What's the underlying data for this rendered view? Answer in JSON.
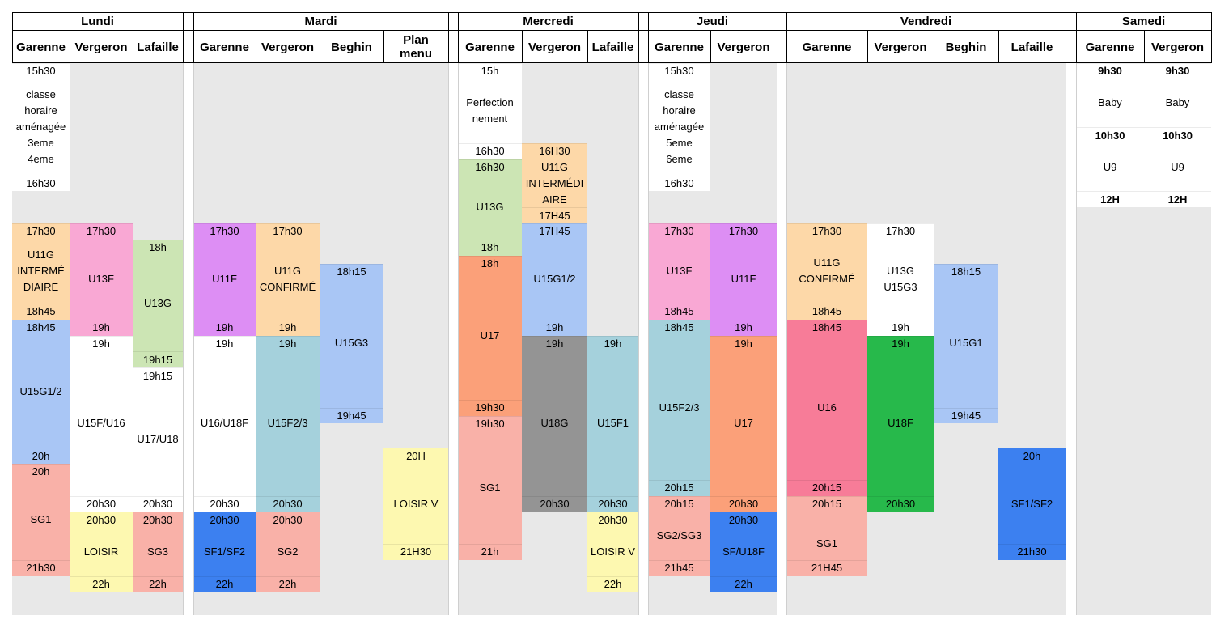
{
  "schedule": {
    "days": [
      {
        "name": "Lundi",
        "columns": [
          "Garenne",
          "Vergeron",
          "Lafaille"
        ]
      },
      {
        "name": "Mardi",
        "columns": [
          "Garenne",
          "Vergeron",
          "Beghin",
          "Plan\nmenu"
        ]
      },
      {
        "name": "Mercredi",
        "columns": [
          "Garenne",
          "Vergeron",
          "Lafaille"
        ]
      },
      {
        "name": "Jeudi",
        "columns": [
          "Garenne",
          "Vergeron"
        ]
      },
      {
        "name": "Vendredi",
        "columns": [
          "Garenne",
          "Vergeron",
          "Beghin",
          "Lafaille"
        ]
      },
      {
        "name": "Samedi",
        "columns": [
          "Garenne",
          "Vergeron"
        ]
      }
    ],
    "colors": {
      "white": "#ffffff",
      "orange": "#fdd8a8",
      "pink": "#f9a8d4",
      "green": "#cce5b4",
      "blue": "#a9c6f5",
      "salmon": "#f9b1a8",
      "yellow": "#fdf8b0",
      "purple": "#dd8ef4",
      "teal": "#a5d1dc",
      "orange2": "#fba079",
      "gray": "#949494",
      "darkblue": "#3c80f0",
      "green2": "#27b94b",
      "hotpink": "#f77c98",
      "grey_bg": "#e8e8e8"
    },
    "cells": [
      {
        "col": "L1",
        "t": 0,
        "r": 1,
        "text": "15h30",
        "c": "white"
      },
      {
        "col": "L1",
        "t": 1,
        "r": 6,
        "text": "classe\nhoraire\naménagée\n3eme\n4eme",
        "c": "white"
      },
      {
        "col": "L1",
        "t": 7,
        "r": 1,
        "text": "16h30",
        "c": "white"
      },
      {
        "col": "L1",
        "t": 10,
        "r": 1,
        "text": "17h30",
        "c": "orange"
      },
      {
        "col": "L1",
        "t": 11,
        "r": 4,
        "text": "U11G\nINTERMÉ\nDIAIRE",
        "c": "orange"
      },
      {
        "col": "L1",
        "t": 15,
        "r": 1,
        "text": "18h45",
        "c": "orange"
      },
      {
        "col": "L1",
        "t": 16,
        "r": 1,
        "text": "18h45",
        "c": "blue"
      },
      {
        "col": "L1",
        "t": 17,
        "r": 7,
        "text": "U15G1/2",
        "c": "blue"
      },
      {
        "col": "L1",
        "t": 24,
        "r": 1,
        "text": "20h",
        "c": "blue"
      },
      {
        "col": "L1",
        "t": 25,
        "r": 1,
        "text": "20h",
        "c": "salmon"
      },
      {
        "col": "L1",
        "t": 26,
        "r": 5,
        "text": "SG1",
        "c": "salmon"
      },
      {
        "col": "L1",
        "t": 31,
        "r": 1,
        "text": "21h30",
        "c": "salmon"
      },
      {
        "col": "L2",
        "t": 10,
        "r": 1,
        "text": "17h30",
        "c": "pink"
      },
      {
        "col": "L2",
        "t": 11,
        "r": 5,
        "text": "U13F",
        "c": "pink"
      },
      {
        "col": "L2",
        "t": 16,
        "r": 1,
        "text": "19h",
        "c": "pink"
      },
      {
        "col": "L2",
        "t": 17,
        "r": 1,
        "text": "19h",
        "c": "white"
      },
      {
        "col": "L2",
        "t": 18,
        "r": 9,
        "text": "U15F/U16",
        "c": "white"
      },
      {
        "col": "L2",
        "t": 27,
        "r": 1,
        "text": "20h30",
        "c": "white"
      },
      {
        "col": "L2",
        "t": 28,
        "r": 1,
        "text": "20h30",
        "c": "yellow"
      },
      {
        "col": "L2",
        "t": 29,
        "r": 3,
        "text": "LOISIR",
        "c": "yellow"
      },
      {
        "col": "L2",
        "t": 32,
        "r": 1,
        "text": "22h",
        "c": "yellow"
      },
      {
        "col": "L3",
        "t": 11,
        "r": 1,
        "text": "18h",
        "c": "green"
      },
      {
        "col": "L3",
        "t": 12,
        "r": 6,
        "text": "U13G",
        "c": "green"
      },
      {
        "col": "L3",
        "t": 18,
        "r": 1,
        "text": "19h15",
        "c": "green"
      },
      {
        "col": "L3",
        "t": 19,
        "r": 1,
        "text": "19h15",
        "c": "white"
      },
      {
        "col": "L3",
        "t": 20,
        "r": 7,
        "text": "U17/U18",
        "c": "white"
      },
      {
        "col": "L3",
        "t": 27,
        "r": 1,
        "text": "20h30",
        "c": "white"
      },
      {
        "col": "L3",
        "t": 28,
        "r": 1,
        "text": "20h30",
        "c": "salmon"
      },
      {
        "col": "L3",
        "t": 29,
        "r": 3,
        "text": "SG3",
        "c": "salmon"
      },
      {
        "col": "L3",
        "t": 32,
        "r": 1,
        "text": "22h",
        "c": "salmon"
      },
      {
        "col": "M1",
        "t": 10,
        "r": 1,
        "text": "17h30",
        "c": "purple"
      },
      {
        "col": "M1",
        "t": 11,
        "r": 5,
        "text": "U11F",
        "c": "purple"
      },
      {
        "col": "M1",
        "t": 16,
        "r": 1,
        "text": "19h",
        "c": "purple"
      },
      {
        "col": "M1",
        "t": 17,
        "r": 1,
        "text": "19h",
        "c": "white"
      },
      {
        "col": "M1",
        "t": 18,
        "r": 9,
        "text": "U16/U18F",
        "c": "white"
      },
      {
        "col": "M1",
        "t": 27,
        "r": 1,
        "text": "20h30",
        "c": "white"
      },
      {
        "col": "M1",
        "t": 28,
        "r": 1,
        "text": "20h30",
        "c": "darkblue"
      },
      {
        "col": "M1",
        "t": 29,
        "r": 3,
        "text": "SF1/SF2",
        "c": "darkblue"
      },
      {
        "col": "M1",
        "t": 32,
        "r": 1,
        "text": "22h",
        "c": "darkblue"
      },
      {
        "col": "M2",
        "t": 10,
        "r": 1,
        "text": "17h30",
        "c": "orange"
      },
      {
        "col": "M2",
        "t": 11,
        "r": 5,
        "text": "U11G\nCONFIRMÉ",
        "c": "orange"
      },
      {
        "col": "M2",
        "t": 16,
        "r": 1,
        "text": "19h",
        "c": "orange"
      },
      {
        "col": "M2",
        "t": 17,
        "r": 1,
        "text": "19h",
        "c": "teal"
      },
      {
        "col": "M2",
        "t": 18,
        "r": 9,
        "text": "U15F2/3",
        "c": "teal"
      },
      {
        "col": "M2",
        "t": 27,
        "r": 1,
        "text": "20h30",
        "c": "teal"
      },
      {
        "col": "M2",
        "t": 28,
        "r": 1,
        "text": "20h30",
        "c": "salmon"
      },
      {
        "col": "M2",
        "t": 29,
        "r": 3,
        "text": "SG2",
        "c": "salmon"
      },
      {
        "col": "M2",
        "t": 32,
        "r": 1,
        "text": "22h",
        "c": "salmon"
      },
      {
        "col": "M3",
        "t": 12.5,
        "r": 1,
        "text": "18h15",
        "c": "blue"
      },
      {
        "col": "M3",
        "t": 13.5,
        "r": 8,
        "text": "U15G3",
        "c": "blue"
      },
      {
        "col": "M3",
        "t": 21.5,
        "r": 1,
        "text": "19h45",
        "c": "blue"
      },
      {
        "col": "M4",
        "t": 24,
        "r": 1,
        "text": "20H",
        "c": "yellow"
      },
      {
        "col": "M4",
        "t": 25,
        "r": 5,
        "text": "LOISIR V",
        "c": "yellow"
      },
      {
        "col": "M4",
        "t": 30,
        "r": 1,
        "text": "21H30",
        "c": "yellow"
      },
      {
        "col": "W1",
        "t": 0,
        "r": 1,
        "text": "15h",
        "c": "white"
      },
      {
        "col": "W1",
        "t": 1,
        "r": 4,
        "text": "Perfection\nnement",
        "c": "white"
      },
      {
        "col": "W1",
        "t": 5,
        "r": 1,
        "text": "16h30",
        "c": "white"
      },
      {
        "col": "W1",
        "t": 6,
        "r": 1,
        "text": "16h30",
        "c": "green"
      },
      {
        "col": "W1",
        "t": 7,
        "r": 4,
        "text": "U13G",
        "c": "green"
      },
      {
        "col": "W1",
        "t": 11,
        "r": 1,
        "text": "18h",
        "c": "green"
      },
      {
        "col": "W1",
        "t": 12,
        "r": 1,
        "text": "18h",
        "c": "orange2"
      },
      {
        "col": "W1",
        "t": 13,
        "r": 8,
        "text": "U17",
        "c": "orange2"
      },
      {
        "col": "W1",
        "t": 21,
        "r": 1,
        "text": "19h30",
        "c": "orange2"
      },
      {
        "col": "W1",
        "t": 22,
        "r": 1,
        "text": "19h30",
        "c": "salmon"
      },
      {
        "col": "W1",
        "t": 23,
        "r": 7,
        "text": "SG1",
        "c": "salmon"
      },
      {
        "col": "W1",
        "t": 30,
        "r": 1,
        "text": "21h",
        "c": "salmon"
      },
      {
        "col": "W2",
        "t": 5,
        "r": 1,
        "text": "16H30",
        "c": "orange"
      },
      {
        "col": "W2",
        "t": 6,
        "r": 3,
        "text": "U11G\nINTERMÉDI\nAIRE",
        "c": "orange"
      },
      {
        "col": "W2",
        "t": 9,
        "r": 1,
        "text": "17H45",
        "c": "orange"
      },
      {
        "col": "W2",
        "t": 10,
        "r": 1,
        "text": "17H45",
        "c": "blue"
      },
      {
        "col": "W2",
        "t": 11,
        "r": 5,
        "text": "U15G1/2",
        "c": "blue"
      },
      {
        "col": "W2",
        "t": 16,
        "r": 1,
        "text": "19h",
        "c": "blue"
      },
      {
        "col": "W2",
        "t": 17,
        "r": 1,
        "text": "19h",
        "c": "gray"
      },
      {
        "col": "W2",
        "t": 18,
        "r": 9,
        "text": "U18G",
        "c": "gray"
      },
      {
        "col": "W2",
        "t": 27,
        "r": 1,
        "text": "20h30",
        "c": "gray"
      },
      {
        "col": "W3",
        "t": 17,
        "r": 1,
        "text": "19h",
        "c": "teal"
      },
      {
        "col": "W3",
        "t": 18,
        "r": 9,
        "text": "U15F1",
        "c": "teal"
      },
      {
        "col": "W3",
        "t": 27,
        "r": 1,
        "text": "20h30",
        "c": "teal"
      },
      {
        "col": "W3",
        "t": 28,
        "r": 1,
        "text": "20h30",
        "c": "yellow"
      },
      {
        "col": "W3",
        "t": 29,
        "r": 3,
        "text": "LOISIR V",
        "c": "yellow"
      },
      {
        "col": "W3",
        "t": 32,
        "r": 1,
        "text": "22h",
        "c": "yellow"
      },
      {
        "col": "J1",
        "t": 0,
        "r": 1,
        "text": "15h30",
        "c": "white"
      },
      {
        "col": "J1",
        "t": 1,
        "r": 6,
        "text": "classe\nhoraire\naménagée\n5eme\n6eme",
        "c": "white"
      },
      {
        "col": "J1",
        "t": 7,
        "r": 1,
        "text": "16h30",
        "c": "white"
      },
      {
        "col": "J1",
        "t": 10,
        "r": 1,
        "text": "17h30",
        "c": "pink"
      },
      {
        "col": "J1",
        "t": 11,
        "r": 4,
        "text": "U13F",
        "c": "pink"
      },
      {
        "col": "J1",
        "t": 15,
        "r": 1,
        "text": "18h45",
        "c": "pink"
      },
      {
        "col": "J1",
        "t": 16,
        "r": 1,
        "text": "18h45",
        "c": "teal"
      },
      {
        "col": "J1",
        "t": 17,
        "r": 9,
        "text": "U15F2/3",
        "c": "teal"
      },
      {
        "col": "J1",
        "t": 26,
        "r": 1,
        "text": "20h15",
        "c": "teal"
      },
      {
        "col": "J1",
        "t": 27,
        "r": 1,
        "text": "20h15",
        "c": "salmon"
      },
      {
        "col": "J1",
        "t": 28,
        "r": 3,
        "text": "SG2/SG3",
        "c": "salmon"
      },
      {
        "col": "J1",
        "t": 31,
        "r": 1,
        "text": "21h45",
        "c": "salmon"
      },
      {
        "col": "J2",
        "t": 10,
        "r": 1,
        "text": "17h30",
        "c": "purple"
      },
      {
        "col": "J2",
        "t": 11,
        "r": 5,
        "text": "U11F",
        "c": "purple"
      },
      {
        "col": "J2",
        "t": 16,
        "r": 1,
        "text": "19h",
        "c": "purple"
      },
      {
        "col": "J2",
        "t": 17,
        "r": 1,
        "text": "19h",
        "c": "orange2"
      },
      {
        "col": "J2",
        "t": 18,
        "r": 9,
        "text": "U17",
        "c": "orange2"
      },
      {
        "col": "J2",
        "t": 27,
        "r": 1,
        "text": "20h30",
        "c": "orange2"
      },
      {
        "col": "J2",
        "t": 28,
        "r": 1,
        "text": "20h30",
        "c": "darkblue"
      },
      {
        "col": "J2",
        "t": 29,
        "r": 3,
        "text": "SF/U18F",
        "c": "darkblue"
      },
      {
        "col": "J2",
        "t": 32,
        "r": 1,
        "text": "22h",
        "c": "darkblue"
      },
      {
        "col": "V1",
        "t": 10,
        "r": 1,
        "text": "17h30",
        "c": "orange"
      },
      {
        "col": "V1",
        "t": 11,
        "r": 4,
        "text": "U11G\nCONFIRMÉ",
        "c": "orange"
      },
      {
        "col": "V1",
        "t": 15,
        "r": 1,
        "text": "18h45",
        "c": "orange"
      },
      {
        "col": "V1",
        "t": 16,
        "r": 1,
        "text": "18h45",
        "c": "hotpink"
      },
      {
        "col": "V1",
        "t": 17,
        "r": 9,
        "text": "U16",
        "c": "hotpink"
      },
      {
        "col": "V1",
        "t": 26,
        "r": 1,
        "text": "20h15",
        "c": "hotpink"
      },
      {
        "col": "V1",
        "t": 27,
        "r": 1,
        "text": "20h15",
        "c": "salmon"
      },
      {
        "col": "V1",
        "t": 28,
        "r": 4,
        "text": "SG1",
        "c": "salmon"
      },
      {
        "col": "V1",
        "t": 31,
        "r": 1,
        "text": "21H45",
        "c": "salmon"
      },
      {
        "col": "V2",
        "t": 10,
        "r": 1,
        "text": "17h30",
        "c": "white"
      },
      {
        "col": "V2",
        "t": 11,
        "r": 5,
        "text": "U13G\nU15G3",
        "c": "white"
      },
      {
        "col": "V2",
        "t": 16,
        "r": 1,
        "text": "19h",
        "c": "white"
      },
      {
        "col": "V2",
        "t": 17,
        "r": 1,
        "text": "19h",
        "c": "green2"
      },
      {
        "col": "V2",
        "t": 18,
        "r": 9,
        "text": "U18F",
        "c": "green2"
      },
      {
        "col": "V2",
        "t": 27,
        "r": 1,
        "text": "20h30",
        "c": "green2"
      },
      {
        "col": "V3",
        "t": 12.5,
        "r": 1,
        "text": "18h15",
        "c": "blue"
      },
      {
        "col": "V3",
        "t": 13.5,
        "r": 8,
        "text": "U15G1",
        "c": "blue"
      },
      {
        "col": "V3",
        "t": 21.5,
        "r": 1,
        "text": "19h45",
        "c": "blue"
      },
      {
        "col": "V4",
        "t": 24,
        "r": 1,
        "text": "20h",
        "c": "darkblue"
      },
      {
        "col": "V4",
        "t": 25,
        "r": 5,
        "text": "SF1/SF2",
        "c": "darkblue"
      },
      {
        "col": "V4",
        "t": 30,
        "r": 1,
        "text": "21h30",
        "c": "darkblue"
      },
      {
        "col": "S1",
        "t": 0,
        "r": 1,
        "text": "9h30",
        "c": "white",
        "bold": true
      },
      {
        "col": "S1",
        "t": 1,
        "r": 3,
        "text": "Baby",
        "c": "white"
      },
      {
        "col": "S1",
        "t": 4,
        "r": 1,
        "text": "10h30",
        "c": "white",
        "bold": true
      },
      {
        "col": "S1",
        "t": 5,
        "r": 3,
        "text": "U9",
        "c": "white"
      },
      {
        "col": "S1",
        "t": 8,
        "r": 1,
        "text": "12H",
        "c": "white",
        "bold": true
      },
      {
        "col": "S2",
        "t": 0,
        "r": 1,
        "text": "9h30",
        "c": "white",
        "bold": true
      },
      {
        "col": "S2",
        "t": 1,
        "r": 3,
        "text": "Baby",
        "c": "white"
      },
      {
        "col": "S2",
        "t": 4,
        "r": 1,
        "text": "10h30",
        "c": "white",
        "bold": true
      },
      {
        "col": "S2",
        "t": 5,
        "r": 3,
        "text": "U9",
        "c": "white"
      },
      {
        "col": "S2",
        "t": 8,
        "r": 1,
        "text": "12H",
        "c": "white",
        "bold": true
      }
    ]
  }
}
